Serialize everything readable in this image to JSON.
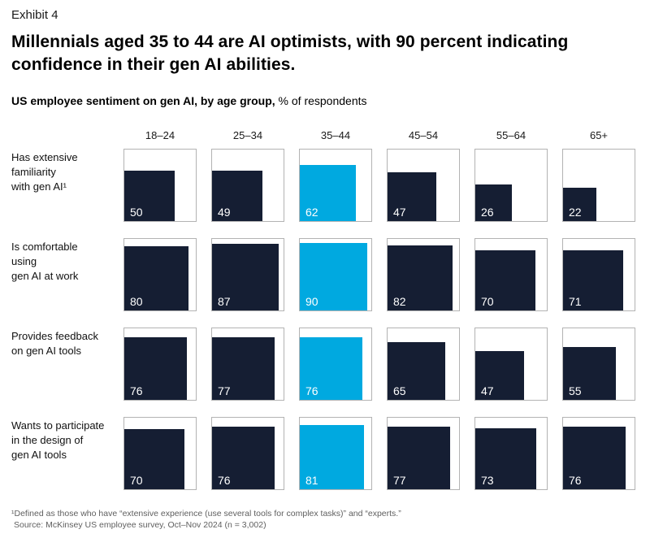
{
  "exhibit_label": "Exhibit 4",
  "title": "Millennials aged 35 to 44 are AI optimists, with 90 percent indicating confidence in their gen AI abilities.",
  "subtitle_bold": "US employee sentiment on gen AI, by age group,",
  "subtitle_regular": " % of respondents",
  "chart_data": {
    "type": "bar",
    "variant": "proportional-area-squares-small-multiples",
    "categories": [
      "18–24",
      "25–34",
      "35–44",
      "45–54",
      "55–64",
      "65+"
    ],
    "series": [
      {
        "name": "Has extensive\nfamiliarity\nwith gen AI¹",
        "values": [
          50,
          49,
          62,
          47,
          26,
          22
        ]
      },
      {
        "name": "Is comfortable using\ngen AI at work",
        "values": [
          80,
          87,
          90,
          82,
          70,
          71
        ]
      },
      {
        "name": "Provides feedback\non gen AI tools",
        "values": [
          76,
          77,
          76,
          65,
          47,
          55
        ]
      },
      {
        "name": "Wants to participate\nin the design of\ngen AI tools",
        "values": [
          70,
          76,
          81,
          77,
          73,
          76
        ]
      }
    ],
    "highlighted_category": "35–44",
    "value_unit": "% of respondents",
    "ylim": [
      0,
      100
    ],
    "legend": "none",
    "grid": "off",
    "colors": {
      "bar": "#151E33",
      "highlight": "#00A9E0",
      "box_border": "#B3B3B3",
      "value_label": "#FFFFFF"
    }
  },
  "footnote": "¹Defined as those who have “extensive experience (use several tools for complex tasks)” and “experts.”",
  "source": "Source: McKinsey US employee survey, Oct–Nov 2024 (n = 3,002)"
}
